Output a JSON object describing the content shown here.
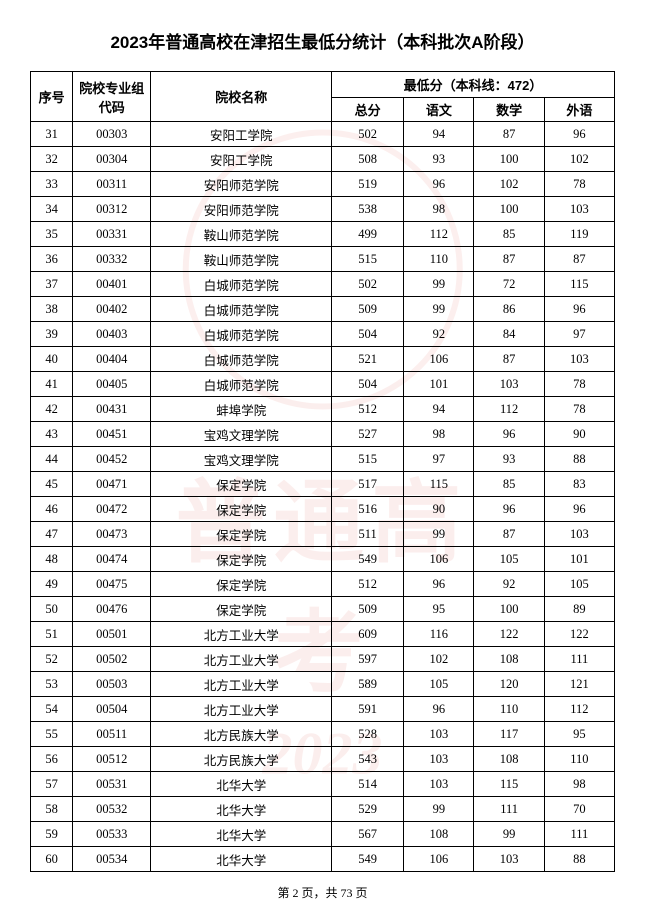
{
  "title": "2023年普通高校在津招生最低分统计（本科批次A阶段）",
  "header": {
    "col_seq": "序号",
    "col_code": "院校专业组代码",
    "col_name": "院校名称",
    "col_group": "最低分（本科线：472）",
    "col_total": "总分",
    "col_chinese": "语文",
    "col_math": "数学",
    "col_foreign": "外语"
  },
  "rows": [
    {
      "seq": "31",
      "code": "00303",
      "name": "安阳工学院",
      "total": "502",
      "chinese": "94",
      "math": "87",
      "foreign": "96"
    },
    {
      "seq": "32",
      "code": "00304",
      "name": "安阳工学院",
      "total": "508",
      "chinese": "93",
      "math": "100",
      "foreign": "102"
    },
    {
      "seq": "33",
      "code": "00311",
      "name": "安阳师范学院",
      "total": "519",
      "chinese": "96",
      "math": "102",
      "foreign": "78"
    },
    {
      "seq": "34",
      "code": "00312",
      "name": "安阳师范学院",
      "total": "538",
      "chinese": "98",
      "math": "100",
      "foreign": "103"
    },
    {
      "seq": "35",
      "code": "00331",
      "name": "鞍山师范学院",
      "total": "499",
      "chinese": "112",
      "math": "85",
      "foreign": "119"
    },
    {
      "seq": "36",
      "code": "00332",
      "name": "鞍山师范学院",
      "total": "515",
      "chinese": "110",
      "math": "87",
      "foreign": "87"
    },
    {
      "seq": "37",
      "code": "00401",
      "name": "白城师范学院",
      "total": "502",
      "chinese": "99",
      "math": "72",
      "foreign": "115"
    },
    {
      "seq": "38",
      "code": "00402",
      "name": "白城师范学院",
      "total": "509",
      "chinese": "99",
      "math": "86",
      "foreign": "96"
    },
    {
      "seq": "39",
      "code": "00403",
      "name": "白城师范学院",
      "total": "504",
      "chinese": "92",
      "math": "84",
      "foreign": "97"
    },
    {
      "seq": "40",
      "code": "00404",
      "name": "白城师范学院",
      "total": "521",
      "chinese": "106",
      "math": "87",
      "foreign": "103"
    },
    {
      "seq": "41",
      "code": "00405",
      "name": "白城师范学院",
      "total": "504",
      "chinese": "101",
      "math": "103",
      "foreign": "78"
    },
    {
      "seq": "42",
      "code": "00431",
      "name": "蚌埠学院",
      "total": "512",
      "chinese": "94",
      "math": "112",
      "foreign": "78"
    },
    {
      "seq": "43",
      "code": "00451",
      "name": "宝鸡文理学院",
      "total": "527",
      "chinese": "98",
      "math": "96",
      "foreign": "90"
    },
    {
      "seq": "44",
      "code": "00452",
      "name": "宝鸡文理学院",
      "total": "515",
      "chinese": "97",
      "math": "93",
      "foreign": "88"
    },
    {
      "seq": "45",
      "code": "00471",
      "name": "保定学院",
      "total": "517",
      "chinese": "115",
      "math": "85",
      "foreign": "83"
    },
    {
      "seq": "46",
      "code": "00472",
      "name": "保定学院",
      "total": "516",
      "chinese": "90",
      "math": "96",
      "foreign": "96"
    },
    {
      "seq": "47",
      "code": "00473",
      "name": "保定学院",
      "total": "511",
      "chinese": "99",
      "math": "87",
      "foreign": "103"
    },
    {
      "seq": "48",
      "code": "00474",
      "name": "保定学院",
      "total": "549",
      "chinese": "106",
      "math": "105",
      "foreign": "101"
    },
    {
      "seq": "49",
      "code": "00475",
      "name": "保定学院",
      "total": "512",
      "chinese": "96",
      "math": "92",
      "foreign": "105"
    },
    {
      "seq": "50",
      "code": "00476",
      "name": "保定学院",
      "total": "509",
      "chinese": "95",
      "math": "100",
      "foreign": "89"
    },
    {
      "seq": "51",
      "code": "00501",
      "name": "北方工业大学",
      "total": "609",
      "chinese": "116",
      "math": "122",
      "foreign": "122"
    },
    {
      "seq": "52",
      "code": "00502",
      "name": "北方工业大学",
      "total": "597",
      "chinese": "102",
      "math": "108",
      "foreign": "111"
    },
    {
      "seq": "53",
      "code": "00503",
      "name": "北方工业大学",
      "total": "589",
      "chinese": "105",
      "math": "120",
      "foreign": "121"
    },
    {
      "seq": "54",
      "code": "00504",
      "name": "北方工业大学",
      "total": "591",
      "chinese": "96",
      "math": "110",
      "foreign": "112"
    },
    {
      "seq": "55",
      "code": "00511",
      "name": "北方民族大学",
      "total": "528",
      "chinese": "103",
      "math": "117",
      "foreign": "95"
    },
    {
      "seq": "56",
      "code": "00512",
      "name": "北方民族大学",
      "total": "543",
      "chinese": "103",
      "math": "108",
      "foreign": "110"
    },
    {
      "seq": "57",
      "code": "00531",
      "name": "北华大学",
      "total": "514",
      "chinese": "103",
      "math": "115",
      "foreign": "98"
    },
    {
      "seq": "58",
      "code": "00532",
      "name": "北华大学",
      "total": "529",
      "chinese": "99",
      "math": "111",
      "foreign": "70"
    },
    {
      "seq": "59",
      "code": "00533",
      "name": "北华大学",
      "total": "567",
      "chinese": "108",
      "math": "99",
      "foreign": "111"
    },
    {
      "seq": "60",
      "code": "00534",
      "name": "北华大学",
      "total": "549",
      "chinese": "106",
      "math": "103",
      "foreign": "88"
    }
  ],
  "footer": "第 2 页，共 73 页"
}
